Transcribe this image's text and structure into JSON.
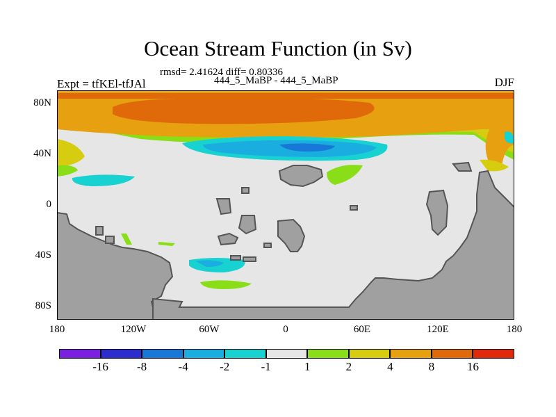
{
  "title": "Ocean Stream Function (in Sv)",
  "subtitle_stats": "rmsd= 2.41624 diff= 0.80336",
  "subtitle_runs": "444_5_MaBP - 444_5_MaBP",
  "left_label": "Expt = tfKEl-tfJAl",
  "right_label": "DJF",
  "lat_ticks": [
    "80N",
    "40N",
    "0",
    "40S",
    "80S"
  ],
  "lon_ticks": [
    "180",
    "120W",
    "60W",
    "0",
    "60E",
    "120E",
    "180"
  ],
  "colorbar": {
    "colors": [
      "#7b1fe0",
      "#2c2ccf",
      "#1878d8",
      "#1aaee0",
      "#18d2d2",
      "#e6e6e6",
      "#8ade18",
      "#d6cc10",
      "#e6a010",
      "#e06a0a",
      "#e02a0a"
    ],
    "labels": [
      "-16",
      "-8",
      "-4",
      "-2",
      "-1",
      "1",
      "2",
      "4",
      "8",
      "16"
    ]
  },
  "colors": {
    "land": "#a0a0a0",
    "ocean_neutral": "#e6e6e6"
  }
}
